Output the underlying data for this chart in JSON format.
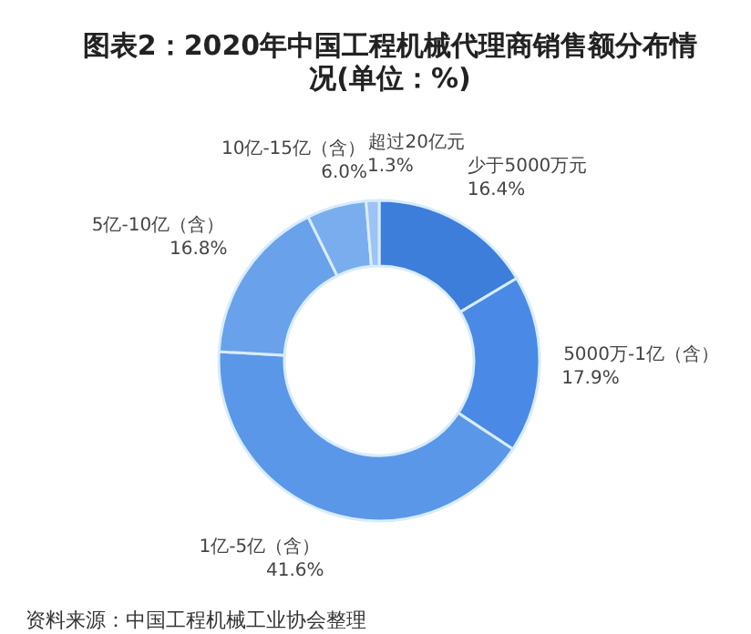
{
  "chart_data": {
    "type": "donut",
    "title": "图表2：2020年中国工程机械代理商销售额分布情况(单位：%)",
    "categories": [
      "少于5000万元",
      "5000万-1亿（含）",
      "1亿-5亿（含）",
      "5亿-10亿（含）",
      "10亿-15亿（含）",
      "超过20亿元"
    ],
    "values": [
      16.4,
      17.9,
      41.6,
      16.8,
      6.0,
      1.3
    ],
    "value_labels": [
      "16.4%",
      "17.9%",
      "41.6%",
      "16.8%",
      "6.0%",
      "1.3%"
    ],
    "colors": [
      "#3d7edb",
      "#4a8ae6",
      "#5b97e8",
      "#69a1eb",
      "#7aadee",
      "#9cc3f3"
    ],
    "annotations": [
      "资料来源：中国工程机械工业协会整理"
    ]
  }
}
